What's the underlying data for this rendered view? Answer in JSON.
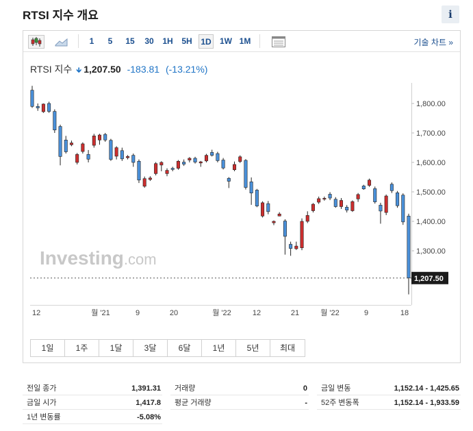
{
  "page": {
    "title": "RTSI 지수 개요",
    "info_icon": "i"
  },
  "toolbar": {
    "icons": [
      "candlestick-icon",
      "area-chart-icon",
      "settings-panel-icon"
    ],
    "timeframes": [
      "1",
      "5",
      "15",
      "30",
      "1H",
      "5H",
      "1D",
      "1W",
      "1M"
    ],
    "active_timeframe": "1D",
    "technical_chart_link": "기술 차트 »"
  },
  "quote": {
    "name": "RTSI 지수",
    "arrow": "down",
    "price": "1,207.50",
    "change": "-183.81",
    "change_pct": "(-13.21%)",
    "color_down": "#1f74c6"
  },
  "chart_data": {
    "type": "candlestick",
    "watermark": "Investing.com",
    "y_ticks": [
      "1,800.00",
      "1,700.00",
      "1,600.00",
      "1,500.00",
      "1,400.00",
      "1,300.00"
    ],
    "y_tick_values": [
      1800,
      1700,
      1600,
      1500,
      1400,
      1300
    ],
    "last_price_label": "1,207.50",
    "last_price": 1207.5,
    "x_ticks": [
      "12",
      "월 '21",
      "9",
      "20",
      "월 '22",
      "12",
      "21",
      "월 '22",
      "9",
      "18"
    ],
    "colors": {
      "up": "#cc2f2f",
      "down": "#4a90d9",
      "outline": "#222222"
    },
    "candles": [
      [
        1845,
        1790,
        1860,
        1785
      ],
      [
        1790,
        1785,
        1800,
        1775
      ],
      [
        1772,
        1798,
        1800,
        1768
      ],
      [
        1800,
        1773,
        1806,
        1768
      ],
      [
        1773,
        1710,
        1780,
        1700
      ],
      [
        1722,
        1620,
        1728,
        1590
      ],
      [
        1676,
        1636,
        1690,
        1630
      ],
      [
        1660,
        1666,
        1674,
        1655
      ],
      [
        1600,
        1627,
        1632,
        1593
      ],
      [
        1637,
        1663,
        1668,
        1630
      ],
      [
        1627,
        1611,
        1642,
        1600
      ],
      [
        1658,
        1690,
        1697,
        1650
      ],
      [
        1676,
        1693,
        1697,
        1660
      ],
      [
        1695,
        1676,
        1700,
        1670
      ],
      [
        1675,
        1610,
        1680,
        1605
      ],
      [
        1621,
        1650,
        1655,
        1610
      ],
      [
        1640,
        1612,
        1650,
        1605
      ],
      [
        1616,
        1620,
        1625,
        1610
      ],
      [
        1624,
        1600,
        1630,
        1585
      ],
      [
        1604,
        1540,
        1610,
        1530
      ],
      [
        1519,
        1545,
        1552,
        1514
      ],
      [
        1542,
        1547,
        1553,
        1537
      ],
      [
        1562,
        1596,
        1601,
        1556
      ],
      [
        1591,
        1600,
        1604,
        1570
      ],
      [
        1562,
        1573,
        1580,
        1553
      ],
      [
        1580,
        1576,
        1585,
        1570
      ],
      [
        1580,
        1604,
        1608,
        1575
      ],
      [
        1601,
        1594,
        1610,
        1588
      ],
      [
        1608,
        1614,
        1618,
        1600
      ],
      [
        1614,
        1601,
        1619,
        1596
      ],
      [
        1598,
        1602,
        1605,
        1585
      ],
      [
        1605,
        1624,
        1629,
        1600
      ],
      [
        1634,
        1624,
        1643,
        1620
      ],
      [
        1630,
        1606,
        1636,
        1600
      ],
      [
        1608,
        1581,
        1615,
        1576
      ],
      [
        1546,
        1536,
        1550,
        1513
      ],
      [
        1575,
        1593,
        1603,
        1570
      ],
      [
        1603,
        1619,
        1624,
        1598
      ],
      [
        1607,
        1515,
        1611,
        1508
      ],
      [
        1534,
        1496,
        1549,
        1456
      ],
      [
        1506,
        1452,
        1510,
        1448
      ],
      [
        1418,
        1463,
        1468,
        1413
      ],
      [
        1460,
        1433,
        1469,
        1424
      ],
      [
        1395,
        1400,
        1403,
        1387
      ],
      [
        1418,
        1425,
        1431,
        1417
      ],
      [
        1401,
        1349,
        1407,
        1287
      ],
      [
        1322,
        1308,
        1331,
        1283
      ],
      [
        1307,
        1316,
        1331,
        1303
      ],
      [
        1310,
        1400,
        1410,
        1302
      ],
      [
        1400,
        1420,
        1434,
        1394
      ],
      [
        1436,
        1458,
        1462,
        1430
      ],
      [
        1465,
        1477,
        1484,
        1459
      ],
      [
        1478,
        1478,
        1484,
        1470
      ],
      [
        1492,
        1479,
        1499,
        1472
      ],
      [
        1475,
        1450,
        1482,
        1446
      ],
      [
        1450,
        1471,
        1479,
        1442
      ],
      [
        1448,
        1438,
        1455,
        1430
      ],
      [
        1436,
        1467,
        1471,
        1432
      ],
      [
        1476,
        1491,
        1496,
        1466
      ],
      [
        1520,
        1510,
        1524,
        1507
      ],
      [
        1522,
        1540,
        1545,
        1517
      ],
      [
        1511,
        1466,
        1518,
        1460
      ],
      [
        1455,
        1435,
        1463,
        1392
      ],
      [
        1430,
        1486,
        1491,
        1421
      ],
      [
        1526,
        1504,
        1532,
        1496
      ],
      [
        1497,
        1453,
        1503,
        1446
      ],
      [
        1489,
        1398,
        1495,
        1388
      ],
      [
        1418,
        1208,
        1426,
        1152
      ]
    ]
  },
  "range_tabs": [
    "1일",
    "1주",
    "1달",
    "3달",
    "6달",
    "1년",
    "5년",
    "최대"
  ],
  "stats": {
    "col1": [
      {
        "label": "전일 종가",
        "value": "1,391.31"
      },
      {
        "label": "금일 시가",
        "value": "1,417.8"
      },
      {
        "label": "1년 변동률",
        "value": "-5.08%"
      }
    ],
    "col2": [
      {
        "label": "거래량",
        "value": "0"
      },
      {
        "label": "평균 거래량",
        "value": "-"
      }
    ],
    "col3": [
      {
        "label": "금일 변동",
        "value": "1,152.14 - 1,425.65"
      },
      {
        "label": "52주 변동폭",
        "value": "1,152.14 - 1,933.59"
      }
    ]
  }
}
